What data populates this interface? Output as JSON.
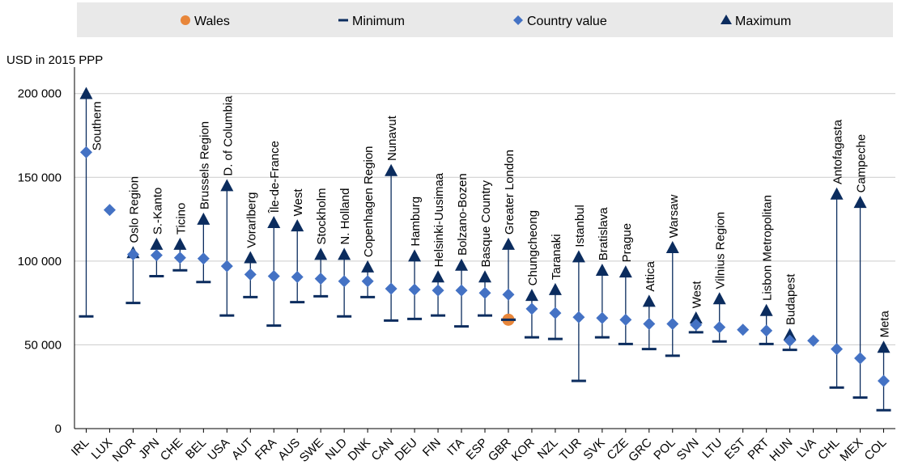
{
  "chart_data": {
    "type": "scatter",
    "ylabel": "USD in 2015 PPP",
    "ylim": [
      0,
      210000
    ],
    "yticks": [
      0,
      50000,
      100000,
      150000,
      200000
    ],
    "ytick_labels": [
      "0",
      "50 000",
      "100 000",
      "150 000",
      "200 000"
    ],
    "grid": "horizontal",
    "legend": {
      "position": "top",
      "entries": [
        {
          "label": "Wales",
          "marker": "circle",
          "color": "#E8863A"
        },
        {
          "label": "Minimum",
          "marker": "dash",
          "color": "#0B2C5E"
        },
        {
          "label": "Country value",
          "marker": "diamond",
          "color": "#4472C4"
        },
        {
          "label": "Maximum",
          "marker": "triangle",
          "color": "#0B2C5E"
        }
      ]
    },
    "categories": [
      "IRL",
      "LUX",
      "NOR",
      "JPN",
      "CHE",
      "BEL",
      "USA",
      "AUT",
      "FRA",
      "AUS",
      "SWE",
      "NLD",
      "DNK",
      "CAN",
      "DEU",
      "FIN",
      "ITA",
      "ESP",
      "GBR",
      "KOR",
      "NZL",
      "TUR",
      "SVK",
      "CZE",
      "GRC",
      "POL",
      "SVN",
      "LTU",
      "EST",
      "PRT",
      "HUN",
      "LVA",
      "CHL",
      "MEX",
      "COL"
    ],
    "series": [
      {
        "name": "Country value",
        "values": [
          165000,
          130500,
          104000,
          103500,
          102000,
          101500,
          97000,
          92000,
          91000,
          90500,
          89500,
          88000,
          88000,
          83500,
          83000,
          82500,
          82500,
          81000,
          80000,
          71500,
          69000,
          66500,
          66000,
          65000,
          62500,
          62500,
          62000,
          60500,
          59000,
          58500,
          52500,
          52500,
          47500,
          42000,
          28500
        ]
      },
      {
        "name": "Minimum",
        "values": [
          67000,
          null,
          75000,
          91000,
          94500,
          87500,
          67500,
          78500,
          61500,
          75500,
          79000,
          67000,
          78500,
          64500,
          65500,
          67500,
          61000,
          67500,
          65000,
          54500,
          53500,
          28500,
          54500,
          50500,
          47500,
          43500,
          57500,
          52000,
          null,
          50500,
          47000,
          null,
          24500,
          18500,
          11000
        ]
      },
      {
        "name": "Maximum",
        "values": [
          200000,
          null,
          105000,
          110000,
          110000,
          125000,
          145000,
          102000,
          123000,
          121000,
          104000,
          104000,
          96500,
          154000,
          103000,
          90500,
          97500,
          90500,
          110000,
          79500,
          83000,
          102500,
          94500,
          93500,
          76000,
          108000,
          66000,
          77500,
          null,
          70500,
          56000,
          null,
          140000,
          135000,
          48500
        ]
      },
      {
        "name": "Wales",
        "values": [
          null,
          null,
          null,
          null,
          null,
          null,
          null,
          null,
          null,
          null,
          null,
          null,
          null,
          null,
          null,
          null,
          null,
          null,
          65000,
          null,
          null,
          null,
          null,
          null,
          null,
          null,
          null,
          null,
          null,
          null,
          null,
          null,
          null,
          null,
          null
        ]
      }
    ],
    "region_labels": [
      {
        "country": "IRL",
        "label": "Southern"
      },
      {
        "country": "NOR",
        "label": "Oslo Region"
      },
      {
        "country": "JPN",
        "label": "S.-Kanto"
      },
      {
        "country": "CHE",
        "label": "Ticino"
      },
      {
        "country": "BEL",
        "label": "Brussels Region"
      },
      {
        "country": "USA",
        "label": "D. of Columbia"
      },
      {
        "country": "AUT",
        "label": "Vorarlberg"
      },
      {
        "country": "FRA",
        "label": "Île-de-France"
      },
      {
        "country": "AUS",
        "label": "West"
      },
      {
        "country": "SWE",
        "label": "Stockholm"
      },
      {
        "country": "NLD",
        "label": "N. Holland"
      },
      {
        "country": "DNK",
        "label": "Copenhagen Region"
      },
      {
        "country": "CAN",
        "label": "Nunavut"
      },
      {
        "country": "DEU",
        "label": "Hamburg"
      },
      {
        "country": "FIN",
        "label": "Helsinki-Uusimaa"
      },
      {
        "country": "ITA",
        "label": "Bolzano-Bozen"
      },
      {
        "country": "ESP",
        "label": "Basque Country"
      },
      {
        "country": "GBR",
        "label": "Greater London"
      },
      {
        "country": "KOR",
        "label": "Chungcheong"
      },
      {
        "country": "NZL",
        "label": "Taranaki"
      },
      {
        "country": "TUR",
        "label": "Istanbul"
      },
      {
        "country": "SVK",
        "label": "Bratislava"
      },
      {
        "country": "CZE",
        "label": "Prague"
      },
      {
        "country": "GRC",
        "label": "Attica"
      },
      {
        "country": "POL",
        "label": "Warsaw"
      },
      {
        "country": "SVN",
        "label": "West"
      },
      {
        "country": "LTU",
        "label": "Vilnius Region"
      },
      {
        "country": "PRT",
        "label": "Lisbon Metropolitan"
      },
      {
        "country": "HUN",
        "label": "Budapest"
      },
      {
        "country": "CHL",
        "label": "Antofagasta"
      },
      {
        "country": "MEX",
        "label": "Campeche"
      },
      {
        "country": "COL",
        "label": "Meta"
      }
    ],
    "colors": {
      "line": "#0B2C5E",
      "diamond": "#4472C4",
      "wales": "#E8863A",
      "grid": "#CCCCCC",
      "legend_bg": "#E9E9E9"
    }
  }
}
